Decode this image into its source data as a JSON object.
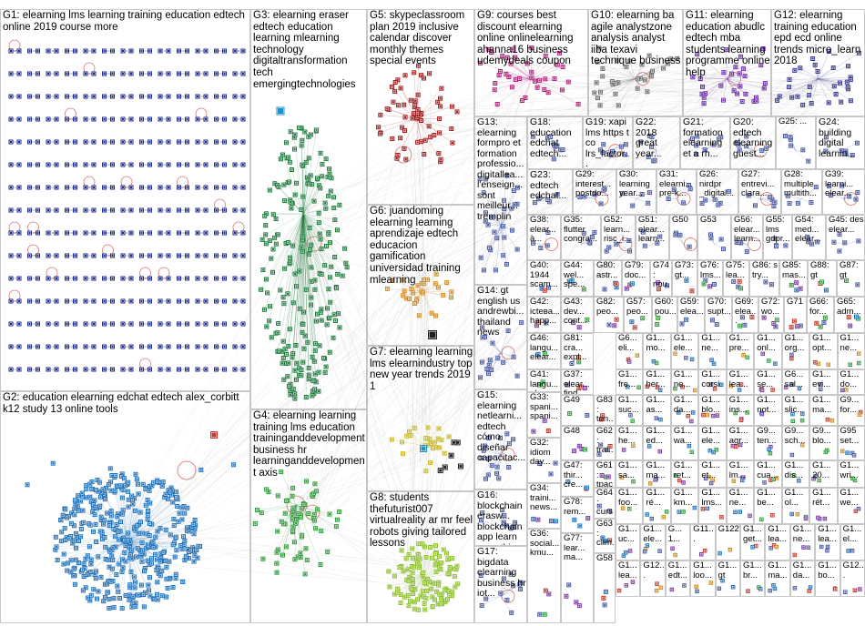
{
  "colors": {
    "G1": "#1e2a8a",
    "G2": "#1d6fb8",
    "G3": "#1f7a3c",
    "G4": "#2f9b3a",
    "G5": "#a01d1d",
    "G6": "#d08a1e",
    "G7": "#c8b81e",
    "G8": "#8cbf2a",
    "G9": "#b0207a",
    "G10": "#6f6f6f",
    "G11": "#6b2aa8",
    "G12": "#3a3a8a",
    "default": "#4a5aa0",
    "edge": "#9a9a9a",
    "border": "#c8c8c8"
  },
  "groups": [
    {
      "id": "G1",
      "label": "G1: elearning lms learning training education edtech online 2019 course more",
      "size": "big"
    },
    {
      "id": "G2",
      "label": "G2: education elearning edchat edtech alex_corbitt k12 study 13 online tools",
      "size": "big"
    },
    {
      "id": "G3",
      "label": "G3: elearning eraser edtech education learning mlearning technology digitaltransformation tech emergingtechnologies",
      "size": "big"
    },
    {
      "id": "G4",
      "label": "G4: elearning learning training lms education traininganddevelopment business hr learninganddevelopment axis",
      "size": "big"
    },
    {
      "id": "G5",
      "label": "G5: skypeclassroom plan 2019 inclusive calendar discover monthly themes special events",
      "size": "big"
    },
    {
      "id": "G6",
      "label": "G6: juandoming elearning learning aprendizaje edtech educacion gamification universidad training mlearning",
      "size": "big"
    },
    {
      "id": "G7",
      "label": "G7: elearning learning lms elearnindustry top new year trends 2019 1",
      "size": "big"
    },
    {
      "id": "G8",
      "label": "G8: students thefuturist007 virtualreality ar mr feel robots giving tailored lessons",
      "size": "big"
    },
    {
      "id": "G9",
      "label": "G9: courses best discount elearning online onlinelearning ahanna16 business udemydeals coupon",
      "size": "big"
    },
    {
      "id": "G10",
      "label": "G10: elearning ba agile analystzone analysis analyst iiba texavi technique business",
      "size": "big"
    },
    {
      "id": "G11",
      "label": "G11: elearning education abudlc edtech mba students learning programme online help",
      "size": "big"
    },
    {
      "id": "G12",
      "label": "G12: elearning training education epd ecd online trends micro_learn 2018",
      "size": "big"
    },
    {
      "id": "G13",
      "label": "G13: elearning formpro et formation professio... digitallea... l'enseign... sont meilleur... tremplin",
      "size": "normal"
    },
    {
      "id": "G18",
      "label": "G18: education edchat edtech...",
      "size": "normal"
    },
    {
      "id": "G19",
      "label": "G19: xapi lms https t co lrs_factor...",
      "size": "normal"
    },
    {
      "id": "G22",
      "label": "G22: 2018 great year...",
      "size": "normal"
    },
    {
      "id": "G21",
      "label": "G21: formation elearning et a rh...",
      "size": "normal"
    },
    {
      "id": "G20",
      "label": "G20: edtech elearning guest...",
      "size": "normal"
    },
    {
      "id": "G25",
      "label": "G25: ...",
      "size": "normal"
    },
    {
      "id": "G24",
      "label": "G24: building digital learnin...",
      "size": "normal"
    },
    {
      "id": "G23",
      "label": "G23: edtech edchat...",
      "size": "normal"
    },
    {
      "id": "G29",
      "label": "G29: interest... postdo...",
      "size": "normal"
    },
    {
      "id": "G30",
      "label": "G30: learning year...",
      "size": "normal"
    },
    {
      "id": "G31",
      "label": "G31: elearni... pre-k...",
      "size": "normal"
    },
    {
      "id": "G26",
      "label": "G26: nirdpr _digital...",
      "size": "normal"
    },
    {
      "id": "G27",
      "label": "G27: entrevi... clara...",
      "size": "normal"
    },
    {
      "id": "G28",
      "label": "G28: multiple multith...",
      "size": "normal"
    },
    {
      "id": "G39",
      "label": "G39: learni... elear...",
      "size": "normal"
    },
    {
      "id": "G38",
      "label": "G38: elear... à...",
      "size": "normal"
    },
    {
      "id": "G35",
      "label": "G35: flutter congra...",
      "size": "normal"
    },
    {
      "id": "G52",
      "label": "G52: learn... risc_i...",
      "size": "normal"
    },
    {
      "id": "G51",
      "label": "G51: elear... learn...",
      "size": "normal"
    },
    {
      "id": "G50",
      "label": "G50",
      "size": "normal"
    },
    {
      "id": "G53",
      "label": "G53",
      "size": "normal"
    },
    {
      "id": "G56",
      "label": "G56: elear... learn...",
      "size": "normal"
    },
    {
      "id": "G55",
      "label": "G55: lms gdpr...",
      "size": "normal"
    },
    {
      "id": "G54",
      "label": "G54: med... elear...",
      "size": "normal"
    },
    {
      "id": "G45",
      "label": "G45: des elear...",
      "size": "normal"
    },
    {
      "id": "G14",
      "label": "G14: gt english us andrewbi... thailand news",
      "size": "normal"
    },
    {
      "id": "G15",
      "label": "G15: elearning netlearni... edtech cómo diseñar capacitac...",
      "size": "normal"
    },
    {
      "id": "G16",
      "label": "G16: blockchain erasw... blockchain app learn somethin...",
      "size": "normal"
    },
    {
      "id": "G17",
      "label": "G17: bigdata elearning business hr iot...",
      "size": "normal"
    }
  ],
  "small_tiles": [
    {
      "id": "G44",
      "text": "G44: wel... spe..."
    },
    {
      "id": "G80",
      "text": "G80: astr..."
    },
    {
      "id": "G79",
      "text": "G79: doc..."
    },
    {
      "id": "G74",
      "text": "G74: nou..."
    },
    {
      "id": "G73",
      "text": "G73: gt..."
    },
    {
      "id": "G76",
      "text": "G76: lms..."
    },
    {
      "id": "G75",
      "text": "G75: lea..."
    },
    {
      "id": "G86",
      "text": "G86: s try..."
    },
    {
      "id": "G85",
      "text": "G85: mas..."
    },
    {
      "id": "G88",
      "text": "G88: gt"
    },
    {
      "id": "G87",
      "text": "G87: gt"
    },
    {
      "id": "G40",
      "text": "G40: 1944 scam..."
    },
    {
      "id": "G42",
      "text": "G42: ictева... happ..."
    },
    {
      "id": "G43",
      "text": "G43: dev... cont..."
    },
    {
      "id": "G82",
      "text": "G82: peo..."
    },
    {
      "id": "G57",
      "text": "G57: peo..."
    },
    {
      "id": "G60",
      "text": "G60: pou..."
    },
    {
      "id": "G59",
      "text": "G59: elea..."
    },
    {
      "id": "G70",
      "text": "G70: supt..."
    },
    {
      "id": "G69",
      "text": "G69: elea..."
    },
    {
      "id": "G72",
      "text": "G72: wo..."
    },
    {
      "id": "G71",
      "text": "G71"
    },
    {
      "id": "G66",
      "text": "G66: for..."
    },
    {
      "id": "G65",
      "text": "G65: adm..."
    },
    {
      "id": "G46",
      "text": "G46: langu... elear..."
    },
    {
      "id": "G41",
      "text": "G41: langu... elear..."
    },
    {
      "id": "G81",
      "text": "G81: cra... expl..."
    },
    {
      "id": "G37",
      "text": "G37: elear... find..."
    },
    {
      "id": "G49",
      "text": "G49"
    },
    {
      "id": "G83",
      "text": "G83: ten..."
    },
    {
      "id": "G33",
      "text": "G33: spani... spani..."
    },
    {
      "id": "G48",
      "text": "G48"
    },
    {
      "id": "G62",
      "text": "G62: trai..."
    },
    {
      "id": "G61",
      "text": "G61: tpack ver..."
    },
    {
      "id": "G32",
      "text": "G32: idiom day..."
    },
    {
      "id": "G47",
      "text": "G47: thir... cre..."
    },
    {
      "id": "G64",
      "text": "G64: curso dest..."
    },
    {
      "id": "G34",
      "text": "G34: traini... news..."
    },
    {
      "id": "G78",
      "text": "G78: rem..."
    },
    {
      "id": "G63",
      "text": "G63: clim..."
    },
    {
      "id": "G36",
      "text": "G36: social... kmu..."
    },
    {
      "id": "G77",
      "text": "G77: lear... ma..."
    },
    {
      "id": "G58",
      "text": "G58"
    }
  ],
  "micro_tiles": [
    "G6... eli...",
    "G1... mo...",
    "G1... ele...",
    "G1... ne...",
    "G1... pre...",
    "G1... onl...",
    "G1... org...",
    "G1... opt...",
    "G1... ne...",
    "G1... fre...",
    "G1... her...",
    "G1... ne...",
    "G1... corsi",
    "G1... lea...",
    "G1... se...",
    "G6... sal...",
    "G1... evi...",
    "G1... do...",
    "G1... suc...",
    "G1... as...",
    "G1... da...",
    "G1... blo...",
    "G1... ins...",
    "G1... not...",
    "G1... slic...",
    "G1... ma...",
    "G9... for...",
    "G1... he...",
    "G1... ed...",
    "G1... wa...",
    "G1... ele...",
    "G1... agr...",
    "G9... ten...",
    "G9... sch...",
    "G9... blo...",
    "G95 set...",
    "G1... sa...",
    "G1... ma...",
    "G1... ret...",
    "G1... et...",
    "G1... lm...",
    "G1... cua...",
    "G1... dis...",
    "G1... 20...",
    "G1... wri...",
    "G1... foo...",
    "G1... ré...",
    "G1... km...",
    "G1... lms...",
    "G1... ne...",
    "G1... be...",
    "G1... ol...",
    "G1... rét...",
    "G1... we...",
    "G1... uc...",
    "G1... ele...",
    "G... 1...",
    "G11...",
    "G122",
    "G1... get...",
    "G1... lea...",
    "G1... ne...",
    "G1... lea...",
    "G1... el...",
    "G1... lea...",
    "G12...",
    "G1... edt...",
    "G1... loo...",
    "G1... gt",
    "G1... br...",
    "G1... ma...",
    "G1... da...",
    "G1... bo...",
    "G12..."
  ]
}
